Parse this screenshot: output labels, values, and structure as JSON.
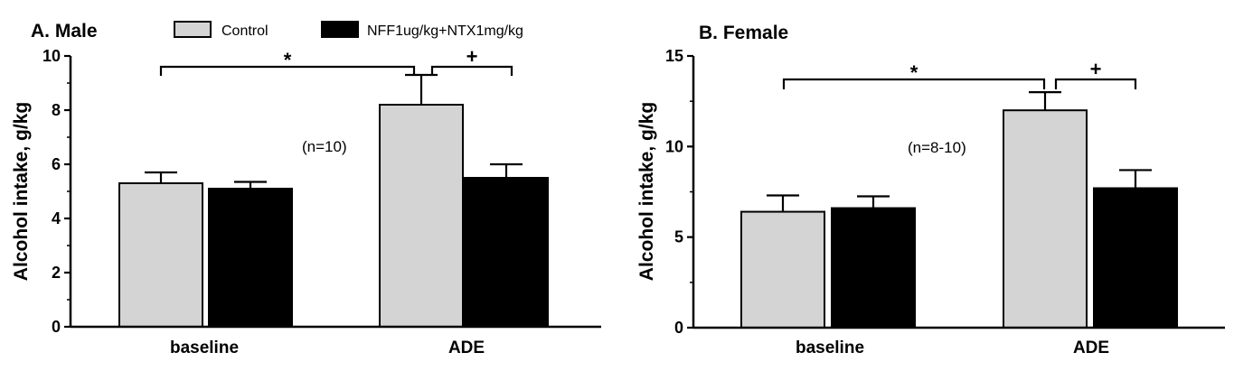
{
  "legend": {
    "items": [
      {
        "label": "Control",
        "color": "#d4d4d4"
      },
      {
        "label": "NFF1ug/kg+NTX1mg/kg",
        "color": "#000000"
      }
    ]
  },
  "chart_data": [
    {
      "type": "bar",
      "title": "A. Male",
      "ylabel": "Alcohol intake, g/kg",
      "xlabel": "",
      "categories": [
        "baseline",
        "ADE"
      ],
      "ylim": [
        0,
        10
      ],
      "yticks": [
        "0",
        "2",
        "4",
        "6",
        "8",
        "10"
      ],
      "series": [
        {
          "name": "Control",
          "values": [
            5.3,
            8.2
          ],
          "errors": [
            0.4,
            1.1
          ],
          "color": "#d4d4d4"
        },
        {
          "name": "NFF1ug/kg+NTX1mg/kg",
          "values": [
            5.1,
            5.5
          ],
          "errors": [
            0.25,
            0.5
          ],
          "color": "#000000"
        }
      ],
      "annotation": "(n=10)",
      "significance": [
        {
          "symbol": "*",
          "from": "baseline",
          "to": "ADE Control"
        },
        {
          "symbol": "+",
          "from": "ADE Control",
          "to": "ADE NFF1ug/kg+NTX1mg/kg"
        }
      ]
    },
    {
      "type": "bar",
      "title": "B. Female",
      "ylabel": "Alcohol intake, g/kg",
      "xlabel": "",
      "categories": [
        "baseline",
        "ADE"
      ],
      "ylim": [
        0,
        15
      ],
      "yticks": [
        "0",
        "5",
        "10",
        "15"
      ],
      "series": [
        {
          "name": "Control",
          "values": [
            6.4,
            12.0
          ],
          "errors": [
            0.9,
            1.0
          ],
          "color": "#d4d4d4"
        },
        {
          "name": "NFF1ug/kg+NTX1mg/kg",
          "values": [
            6.6,
            7.7
          ],
          "errors": [
            0.65,
            1.0
          ],
          "color": "#000000"
        }
      ],
      "annotation": "(n=8-10)",
      "significance": [
        {
          "symbol": "*",
          "from": "baseline",
          "to": "ADE Control"
        },
        {
          "symbol": "+",
          "from": "ADE Control",
          "to": "ADE NFF1ug/kg+NTX1mg/kg"
        }
      ]
    }
  ]
}
